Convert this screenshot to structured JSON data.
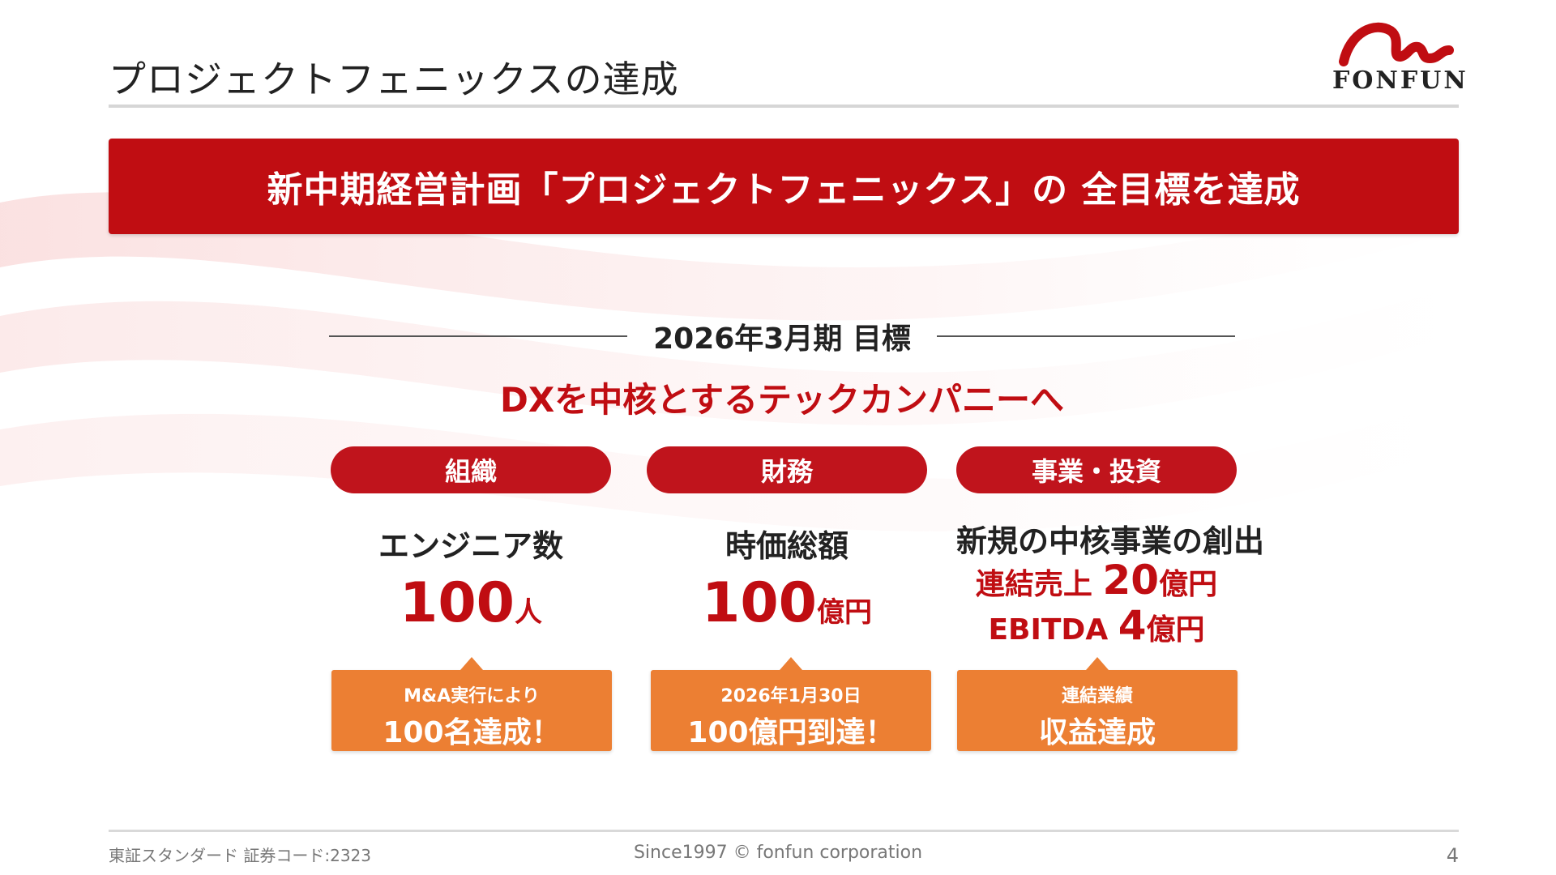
{
  "header": {
    "title": "プロジェクトフェニックスの達成",
    "logo_text": "FONFUN"
  },
  "banner": {
    "text": "新中期経営計画「プロジェクトフェニックス」の 全目標を達成"
  },
  "target": {
    "label": "2026年3月期 目標",
    "vision": "DXを中核とするテックカンパニーへ"
  },
  "columns": [
    {
      "category": "組織",
      "metric": "エンジニア数",
      "value_number": "100",
      "value_unit": "人",
      "callout_small": "M&A実行により",
      "callout_big": "100名達成！"
    },
    {
      "category": "財務",
      "metric": "時価総額",
      "value_number": "100",
      "value_unit": "億円",
      "callout_small": "2026年1月30日",
      "callout_big": "100億円到達！"
    },
    {
      "category": "事業・投資",
      "metric": "新規の中核事業の創出",
      "line1_label": "連結売上 ",
      "line1_number": "20",
      "line1_unit": "億円",
      "line2_label": "EBITDA ",
      "line2_number": "4",
      "line2_unit": "億円",
      "callout_small": "連結業績",
      "callout_big": "収益達成"
    }
  ],
  "footer": {
    "left": "東証スタンダード 証券コード:2323",
    "center": "Since1997 © fonfun corporation",
    "page": "4"
  },
  "colors": {
    "brand_red": "#c00d12",
    "pill_red": "#c0141c",
    "callout_orange": "#ec7f33"
  }
}
